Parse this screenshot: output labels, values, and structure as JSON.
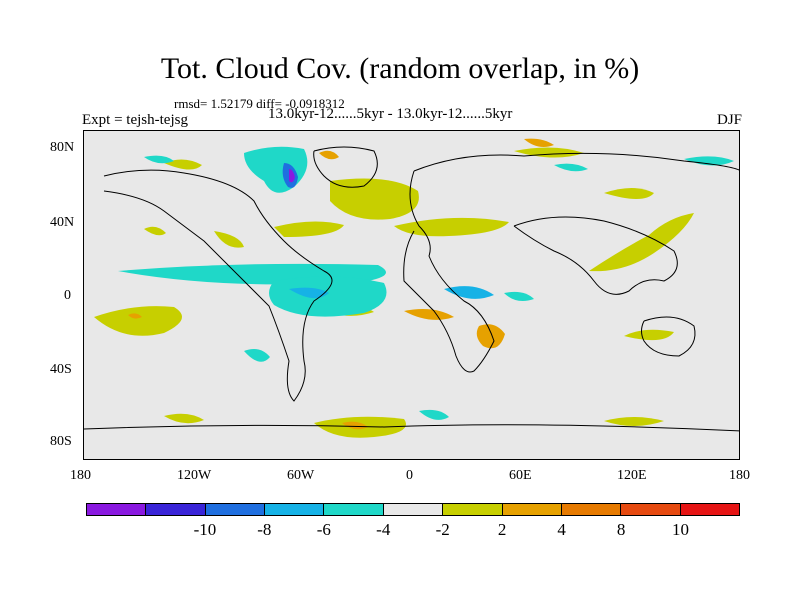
{
  "title": "Tot. Cloud Cov. (random overlap, in %)",
  "stats": "rmsd= 1.52179 diff= -0.0918312",
  "experiment": "Expt = tejsh-tejsg",
  "period": "13.0kyr-12......5kyr - 13.0kyr-12......5kyr",
  "season": "DJF",
  "axes": {
    "lat_labels": [
      "80N",
      "40N",
      "0",
      "40S",
      "80S"
    ],
    "lon_labels": [
      "180",
      "120W",
      "60W",
      "0",
      "60E",
      "120E",
      "180"
    ]
  },
  "colorbar": {
    "colors": [
      "#8a19e0",
      "#3a25d8",
      "#1f6fe0",
      "#16b2e6",
      "#1fd8c8",
      "#e8e8e8",
      "#c7cf00",
      "#e6a100",
      "#e67a00",
      "#e64a10",
      "#e61414"
    ],
    "labels": [
      "-10",
      "-8",
      "-6",
      "-4",
      "-2",
      "2",
      "4",
      "8",
      "10"
    ]
  }
}
